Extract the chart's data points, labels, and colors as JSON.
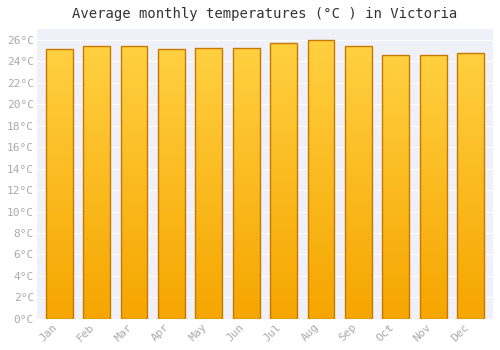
{
  "title": "Average monthly temperatures (°C ) in Victoria",
  "months": [
    "Jan",
    "Feb",
    "Mar",
    "Apr",
    "May",
    "Jun",
    "Jul",
    "Aug",
    "Sep",
    "Oct",
    "Nov",
    "Dec"
  ],
  "values": [
    25.1,
    25.4,
    25.4,
    25.1,
    25.2,
    25.2,
    25.7,
    26.0,
    25.4,
    24.6,
    24.6,
    24.8
  ],
  "bar_color_bottom": "#F5A500",
  "bar_color_top": "#FFD040",
  "bar_edge_color": "#C87800",
  "background_color": "#ffffff",
  "plot_bg_color": "#f0f0f8",
  "grid_color": "#ffffff",
  "ylim": [
    0,
    27
  ],
  "ytick_step": 2,
  "title_fontsize": 10,
  "tick_fontsize": 8,
  "font_family": "monospace",
  "tick_color": "#aaaaaa",
  "title_color": "#333333"
}
